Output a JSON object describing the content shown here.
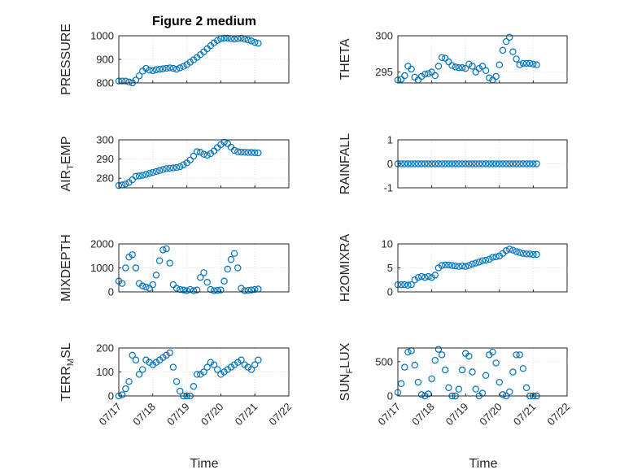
{
  "figure": {
    "title": "Figure 2 medium",
    "xlabel": "Time"
  },
  "chart_data": [
    {
      "id": "pressure",
      "type": "scatter",
      "title": "Figure 2 medium",
      "ylabel": "PRESSURE",
      "xlabel": "",
      "ylim": [
        800,
        1000
      ],
      "yticks": [
        800,
        900,
        1000
      ],
      "xlim": [
        0,
        5
      ],
      "xticks": [
        "07/17",
        "07/18",
        "07/19",
        "07/20",
        "07/21",
        "07/22"
      ],
      "show_xticklabels": false,
      "grid": true,
      "x": [
        0.0,
        0.1,
        0.2,
        0.3,
        0.4,
        0.5,
        0.6,
        0.7,
        0.8,
        0.9,
        1.0,
        1.1,
        1.2,
        1.3,
        1.4,
        1.5,
        1.6,
        1.7,
        1.8,
        1.9,
        2.0,
        2.1,
        2.2,
        2.3,
        2.4,
        2.5,
        2.6,
        2.7,
        2.8,
        2.9,
        3.0,
        3.1,
        3.2,
        3.3,
        3.4,
        3.5,
        3.6,
        3.7,
        3.8,
        3.9,
        4.0,
        4.1
      ],
      "y": [
        808,
        808,
        808,
        804,
        800,
        812,
        830,
        850,
        862,
        854,
        852,
        856,
        858,
        860,
        862,
        864,
        862,
        858,
        864,
        870,
        878,
        888,
        898,
        908,
        920,
        932,
        945,
        958,
        970,
        980,
        988,
        990,
        990,
        988,
        986,
        988,
        990,
        986,
        982,
        978,
        972,
        968
      ]
    },
    {
      "id": "theta",
      "type": "scatter",
      "ylabel": "THETA",
      "ylim": [
        293.5,
        300
      ],
      "yticks": [
        295,
        300
      ],
      "xlim": [
        0,
        5
      ],
      "xticks": [
        "07/17",
        "07/18",
        "07/19",
        "07/20",
        "07/21",
        "07/22"
      ],
      "show_xticklabels": false,
      "grid": true,
      "x": [
        0.0,
        0.1,
        0.2,
        0.3,
        0.4,
        0.5,
        0.6,
        0.7,
        0.8,
        0.9,
        1.0,
        1.1,
        1.2,
        1.3,
        1.4,
        1.5,
        1.6,
        1.7,
        1.8,
        1.9,
        2.0,
        2.1,
        2.2,
        2.3,
        2.4,
        2.5,
        2.6,
        2.7,
        2.8,
        2.9,
        3.0,
        3.1,
        3.2,
        3.3,
        3.4,
        3.5,
        3.6,
        3.7,
        3.8,
        3.9,
        4.0,
        4.1
      ],
      "y": [
        293.9,
        294.0,
        294.5,
        295.8,
        295.4,
        294.3,
        293.9,
        294.4,
        294.7,
        294.8,
        295.0,
        294.5,
        295.8,
        297.0,
        296.9,
        296.4,
        295.9,
        295.7,
        295.6,
        295.6,
        295.5,
        296.1,
        295.8,
        295.0,
        295.5,
        295.8,
        295.2,
        294.2,
        293.9,
        294.4,
        296.0,
        298.0,
        299.2,
        299.8,
        297.8,
        296.8,
        296.0,
        296.2,
        296.2,
        296.2,
        296.1,
        296.0
      ]
    },
    {
      "id": "air_temp",
      "type": "scatter",
      "ylabel": "AIR_TEMP",
      "ylim": [
        275,
        300
      ],
      "yticks": [
        280,
        290,
        300
      ],
      "xlim": [
        0,
        5
      ],
      "xticks": [
        "07/17",
        "07/18",
        "07/19",
        "07/20",
        "07/21",
        "07/22"
      ],
      "show_xticklabels": false,
      "grid": true,
      "x": [
        0.0,
        0.1,
        0.2,
        0.3,
        0.4,
        0.5,
        0.6,
        0.7,
        0.8,
        0.9,
        1.0,
        1.1,
        1.2,
        1.3,
        1.4,
        1.5,
        1.6,
        1.7,
        1.8,
        1.9,
        2.0,
        2.1,
        2.2,
        2.3,
        2.4,
        2.5,
        2.6,
        2.7,
        2.8,
        2.9,
        3.0,
        3.1,
        3.2,
        3.3,
        3.4,
        3.5,
        3.6,
        3.7,
        3.8,
        3.9,
        4.0,
        4.1
      ],
      "y": [
        276.2,
        276.5,
        277.0,
        277.8,
        279.2,
        281.0,
        281.2,
        281.5,
        282.0,
        282.5,
        283.0,
        283.5,
        284.0,
        284.5,
        285.0,
        285.2,
        285.4,
        285.6,
        286.0,
        287.0,
        288.0,
        289.5,
        291.5,
        293.8,
        293.5,
        292.5,
        292.0,
        292.8,
        294.2,
        296.0,
        297.5,
        298.8,
        298.0,
        296.2,
        294.5,
        293.8,
        293.6,
        293.5,
        293.4,
        293.4,
        293.3,
        293.2
      ]
    },
    {
      "id": "rainfall",
      "type": "scatter",
      "ylabel": "RAINFALL",
      "ylim": [
        -1,
        1
      ],
      "yticks": [
        -1,
        0,
        1
      ],
      "xlim": [
        0,
        5
      ],
      "xticks": [
        "07/17",
        "07/18",
        "07/19",
        "07/20",
        "07/21",
        "07/22"
      ],
      "show_xticklabels": false,
      "grid": true,
      "x": [
        0.0,
        0.1,
        0.2,
        0.3,
        0.4,
        0.5,
        0.6,
        0.7,
        0.8,
        0.9,
        1.0,
        1.1,
        1.2,
        1.3,
        1.4,
        1.5,
        1.6,
        1.7,
        1.8,
        1.9,
        2.0,
        2.1,
        2.2,
        2.3,
        2.4,
        2.5,
        2.6,
        2.7,
        2.8,
        2.9,
        3.0,
        3.1,
        3.2,
        3.3,
        3.4,
        3.5,
        3.6,
        3.7,
        3.8,
        3.9,
        4.0,
        4.1
      ],
      "y": [
        0,
        0,
        0,
        0,
        0,
        0,
        0,
        0,
        0,
        0,
        0,
        0,
        0,
        0,
        0,
        0,
        0,
        0,
        0,
        0,
        0,
        0,
        0,
        0,
        0,
        0,
        0,
        0,
        0,
        0,
        0,
        0,
        0,
        0,
        0,
        0,
        0,
        0,
        0,
        0,
        0,
        0
      ]
    },
    {
      "id": "mixdepth",
      "type": "scatter",
      "ylabel": "MIXDEPTH",
      "ylim": [
        0,
        2000
      ],
      "yticks": [
        0,
        1000,
        2000
      ],
      "xlim": [
        0,
        5
      ],
      "xticks": [
        "07/17",
        "07/18",
        "07/19",
        "07/20",
        "07/21",
        "07/22"
      ],
      "show_xticklabels": false,
      "grid": true,
      "x": [
        0.0,
        0.1,
        0.2,
        0.3,
        0.4,
        0.5,
        0.6,
        0.7,
        0.8,
        0.9,
        1.0,
        1.1,
        1.2,
        1.3,
        1.4,
        1.5,
        1.6,
        1.7,
        1.8,
        1.9,
        2.0,
        2.1,
        2.2,
        2.3,
        2.4,
        2.5,
        2.6,
        2.7,
        2.8,
        2.9,
        3.0,
        3.1,
        3.2,
        3.3,
        3.4,
        3.5,
        3.6,
        3.7,
        3.8,
        3.9,
        4.0,
        4.1
      ],
      "y": [
        450,
        350,
        1000,
        1450,
        1550,
        1000,
        350,
        250,
        200,
        150,
        300,
        700,
        1300,
        1750,
        1800,
        1200,
        300,
        150,
        100,
        80,
        50,
        100,
        50,
        80,
        600,
        800,
        400,
        100,
        50,
        60,
        80,
        450,
        950,
        1350,
        1600,
        1000,
        150,
        50,
        60,
        80,
        100,
        120
      ]
    },
    {
      "id": "h2omixra",
      "type": "scatter",
      "ylabel": "H2OMIXRA",
      "ylim": [
        0,
        10
      ],
      "yticks": [
        0,
        5,
        10
      ],
      "xlim": [
        0,
        5
      ],
      "xticks": [
        "07/17",
        "07/18",
        "07/19",
        "07/20",
        "07/21",
        "07/22"
      ],
      "show_xticklabels": false,
      "grid": true,
      "x": [
        0.0,
        0.1,
        0.2,
        0.3,
        0.4,
        0.5,
        0.6,
        0.7,
        0.8,
        0.9,
        1.0,
        1.1,
        1.2,
        1.3,
        1.4,
        1.5,
        1.6,
        1.7,
        1.8,
        1.9,
        2.0,
        2.1,
        2.2,
        2.3,
        2.4,
        2.5,
        2.6,
        2.7,
        2.8,
        2.9,
        3.0,
        3.1,
        3.2,
        3.3,
        3.4,
        3.5,
        3.6,
        3.7,
        3.8,
        3.9,
        4.0,
        4.1
      ],
      "y": [
        1.5,
        1.5,
        1.5,
        1.4,
        1.5,
        2.5,
        3.0,
        3.2,
        3.0,
        3.2,
        3.0,
        3.5,
        5.0,
        5.5,
        5.6,
        5.6,
        5.5,
        5.4,
        5.3,
        5.4,
        5.3,
        5.5,
        5.8,
        6.0,
        6.2,
        6.5,
        6.6,
        6.8,
        7.2,
        7.3,
        7.5,
        8.0,
        8.6,
        8.9,
        8.7,
        8.4,
        8.2,
        8.0,
        7.9,
        7.9,
        7.8,
        7.8
      ]
    },
    {
      "id": "terr_msl",
      "type": "scatter",
      "ylabel": "TERR_MSL",
      "ylim": [
        0,
        200
      ],
      "yticks": [
        0,
        100,
        200
      ],
      "xlim": [
        0,
        5
      ],
      "xticks": [
        "07/17",
        "07/18",
        "07/19",
        "07/20",
        "07/21",
        "07/22"
      ],
      "show_xticklabels": true,
      "grid": true,
      "x": [
        0.0,
        0.1,
        0.2,
        0.3,
        0.4,
        0.5,
        0.6,
        0.7,
        0.8,
        0.9,
        1.0,
        1.1,
        1.2,
        1.3,
        1.4,
        1.5,
        1.6,
        1.7,
        1.8,
        1.9,
        2.0,
        2.1,
        2.2,
        2.3,
        2.4,
        2.5,
        2.6,
        2.7,
        2.8,
        2.9,
        3.0,
        3.1,
        3.2,
        3.3,
        3.4,
        3.5,
        3.6,
        3.7,
        3.8,
        3.9,
        4.0,
        4.1
      ],
      "y": [
        0,
        5,
        30,
        60,
        170,
        150,
        90,
        110,
        150,
        140,
        130,
        140,
        150,
        160,
        170,
        180,
        120,
        60,
        20,
        0,
        0,
        0,
        40,
        90,
        90,
        100,
        120,
        140,
        130,
        110,
        90,
        100,
        110,
        120,
        130,
        140,
        150,
        130,
        120,
        110,
        130,
        150
      ]
    },
    {
      "id": "sun_flux",
      "type": "scatter",
      "ylabel": "SUN_FLUX",
      "ylim": [
        0,
        700
      ],
      "yticks": [
        0,
        500
      ],
      "xlim": [
        0,
        5
      ],
      "xticks": [
        "07/17",
        "07/18",
        "07/19",
        "07/20",
        "07/21",
        "07/22"
      ],
      "show_xticklabels": true,
      "grid": true,
      "x": [
        0.0,
        0.1,
        0.2,
        0.3,
        0.4,
        0.5,
        0.6,
        0.7,
        0.8,
        0.9,
        1.0,
        1.1,
        1.2,
        1.3,
        1.4,
        1.5,
        1.6,
        1.7,
        1.8,
        1.9,
        2.0,
        2.1,
        2.2,
        2.3,
        2.4,
        2.5,
        2.6,
        2.7,
        2.8,
        2.9,
        3.0,
        3.1,
        3.2,
        3.3,
        3.4,
        3.5,
        3.6,
        3.7,
        3.8,
        3.9,
        4.0,
        4.1
      ],
      "y": [
        50,
        180,
        420,
        640,
        660,
        450,
        200,
        20,
        0,
        30,
        250,
        520,
        680,
        600,
        380,
        120,
        0,
        0,
        100,
        380,
        620,
        580,
        350,
        100,
        0,
        40,
        300,
        600,
        640,
        480,
        200,
        20,
        0,
        60,
        350,
        600,
        600,
        400,
        120,
        0,
        0,
        0
      ]
    }
  ],
  "colors": {
    "marker": "#0072BD",
    "axis": "#262626",
    "grid": "#DFDFDF"
  }
}
